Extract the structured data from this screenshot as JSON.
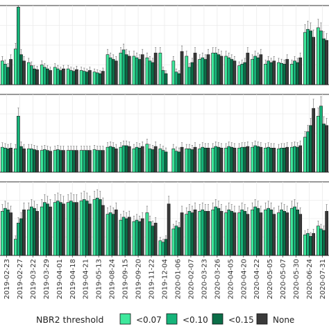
{
  "chart_data": {
    "type": "bar",
    "title": "",
    "xlabel": "",
    "ylabel": "",
    "legend": {
      "title": "NBR2 threshold",
      "position": "bottom",
      "entries": [
        {
          "name": "<0.07",
          "color": "#3ee89c"
        },
        {
          "name": "<0.10",
          "color": "#16b47a"
        },
        {
          "name": "<0.15",
          "color": "#0b6e48"
        },
        {
          "name": "None",
          "color": "#3a3a3a"
        }
      ]
    },
    "categories": [
      "2019-02-23",
      "2019-02-27",
      "2019-03-22",
      "2019-03-29",
      "2019-04-01",
      "2019-04-18",
      "2019-04-21",
      "2019-05-13",
      "2019-08-24",
      "2019-09-15",
      "2019-09-20",
      "2019-11-22",
      "2019-12-04",
      "2020-01-06",
      "2020-02-07",
      "2020-03-23",
      "2020-03-26",
      "2020-04-05",
      "2020-04-20",
      "2020-04-22",
      "2020-05-05",
      "2020-05-07",
      "2020-05-30",
      "2020-06-24",
      "2020-07-31"
    ],
    "panels": [
      {
        "ylim": [
          0,
          1
        ],
        "series": [
          {
            "name": "<0.07",
            "values": [
              0.3,
              0.45,
              0.28,
              0.25,
              0.22,
              0.2,
              0.18,
              0.16,
              0.38,
              0.4,
              0.36,
              0.34,
              0.4,
              0.3,
              0.36,
              0.32,
              0.4,
              0.36,
              0.24,
              0.32,
              0.26,
              0.28,
              0.26,
              0.66,
              0.72
            ]
          },
          {
            "name": "<0.10",
            "values": [
              0.26,
              0.98,
              0.24,
              0.22,
              0.2,
              0.18,
              0.17,
              0.15,
              0.34,
              0.44,
              0.34,
              0.3,
              0.18,
              0.16,
              0.22,
              0.34,
              0.4,
              0.34,
              0.26,
              0.36,
              0.3,
              0.27,
              0.3,
              0.7,
              0.68
            ]
          },
          {
            "name": "<0.15",
            "values": [
              0.22,
              0.38,
              0.2,
              0.2,
              0.18,
              0.17,
              0.16,
              0.14,
              0.32,
              0.38,
              0.32,
              0.28,
              0.14,
              0.14,
              0.28,
              0.32,
              0.38,
              0.32,
              0.28,
              0.34,
              0.28,
              0.26,
              0.28,
              0.68,
              0.58
            ]
          },
          {
            "name": "None",
            "values": [
              0.32,
              0.3,
              0.19,
              0.18,
              0.2,
              0.19,
              0.18,
              0.17,
              0.3,
              0.36,
              0.38,
              0.4,
              0.0,
              0.42,
              0.4,
              0.38,
              0.36,
              0.3,
              0.4,
              0.38,
              0.3,
              0.32,
              0.34,
              0.6,
              0.56
            ]
          }
        ]
      },
      {
        "ylim": [
          0,
          1
        ],
        "series": [
          {
            "name": "<0.07",
            "values": [
              0.32,
              0.3,
              0.3,
              0.28,
              0.28,
              0.28,
              0.28,
              0.29,
              0.32,
              0.32,
              0.3,
              0.36,
              0.3,
              0.3,
              0.3,
              0.3,
              0.31,
              0.31,
              0.31,
              0.32,
              0.31,
              0.3,
              0.32,
              0.45,
              0.72
            ]
          },
          {
            "name": "<0.10",
            "values": [
              0.31,
              0.72,
              0.3,
              0.29,
              0.29,
              0.28,
              0.28,
              0.28,
              0.33,
              0.34,
              0.32,
              0.3,
              0.28,
              0.27,
              0.3,
              0.32,
              0.33,
              0.33,
              0.32,
              0.34,
              0.32,
              0.31,
              0.33,
              0.52,
              0.85
            ]
          },
          {
            "name": "<0.15",
            "values": [
              0.3,
              0.33,
              0.29,
              0.28,
              0.28,
              0.28,
              0.28,
              0.28,
              0.32,
              0.34,
              0.31,
              0.29,
              0.26,
              0.26,
              0.29,
              0.31,
              0.32,
              0.32,
              0.32,
              0.33,
              0.31,
              0.31,
              0.32,
              0.6,
              0.62
            ]
          },
          {
            "name": "None",
            "values": [
              0.31,
              0.3,
              0.28,
              0.27,
              0.28,
              0.28,
              0.28,
              0.28,
              0.3,
              0.33,
              0.33,
              0.33,
              0.0,
              0.32,
              0.32,
              0.31,
              0.31,
              0.31,
              0.33,
              0.32,
              0.31,
              0.32,
              0.34,
              0.82,
              0.6
            ]
          }
        ]
      },
      {
        "ylim": [
          0,
          1
        ],
        "series": [
          {
            "name": "<0.07",
            "values": [
              0.6,
              0.22,
              0.62,
              0.66,
              0.72,
              0.72,
              0.74,
              0.76,
              0.56,
              0.48,
              0.46,
              0.58,
              0.2,
              0.36,
              0.56,
              0.6,
              0.62,
              0.58,
              0.58,
              0.62,
              0.62,
              0.58,
              0.64,
              0.28,
              0.4
            ]
          },
          {
            "name": "<0.10",
            "values": [
              0.64,
              0.44,
              0.66,
              0.72,
              0.74,
              0.74,
              0.76,
              0.78,
              0.58,
              0.52,
              0.48,
              0.46,
              0.18,
              0.4,
              0.6,
              0.62,
              0.66,
              0.62,
              0.62,
              0.66,
              0.64,
              0.62,
              0.66,
              0.3,
              0.36
            ]
          },
          {
            "name": "<0.15",
            "values": [
              0.62,
              0.5,
              0.64,
              0.7,
              0.72,
              0.72,
              0.74,
              0.76,
              0.56,
              0.5,
              0.46,
              0.4,
              0.22,
              0.38,
              0.58,
              0.6,
              0.64,
              0.6,
              0.6,
              0.64,
              0.62,
              0.6,
              0.62,
              0.26,
              0.34
            ]
          },
          {
            "name": "None",
            "values": [
              0.58,
              0.62,
              0.6,
              0.66,
              0.7,
              0.72,
              0.7,
              0.68,
              0.62,
              0.52,
              0.5,
              0.44,
              0.7,
              0.58,
              0.62,
              0.6,
              0.6,
              0.58,
              0.56,
              0.58,
              0.56,
              0.58,
              0.56,
              0.3,
              0.6
            ]
          }
        ]
      }
    ],
    "grid": true
  }
}
